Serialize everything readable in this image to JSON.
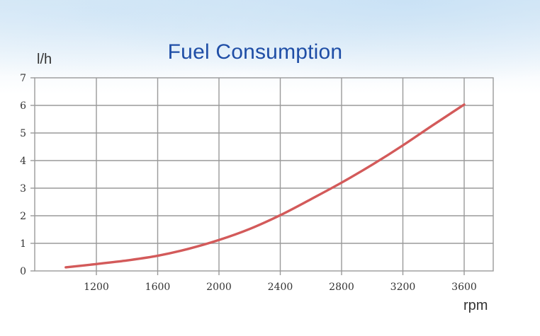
{
  "chart_data": {
    "type": "line",
    "title": "Fuel Consumption",
    "ylabel": "l/h",
    "xlabel": "rpm",
    "xlim": [
      1000,
      3500
    ],
    "ylim": [
      0,
      7
    ],
    "x_ticks": [
      1200,
      1600,
      2000,
      2400,
      2800,
      3200,
      3600
    ],
    "y_ticks": [
      0,
      1,
      2,
      3,
      4,
      5,
      6,
      7
    ],
    "grid": true,
    "series": [
      {
        "color": "#d35a5a",
        "x": [
          1000,
          1200,
          1400,
          1600,
          1800,
          2000,
          2200,
          2400,
          2600,
          2800,
          3000,
          3200,
          3400,
          3600
        ],
        "y": [
          0.13,
          0.25,
          0.38,
          0.55,
          0.8,
          1.12,
          1.52,
          2.02,
          2.6,
          3.2,
          3.85,
          4.55,
          5.3,
          6.03
        ]
      }
    ]
  }
}
